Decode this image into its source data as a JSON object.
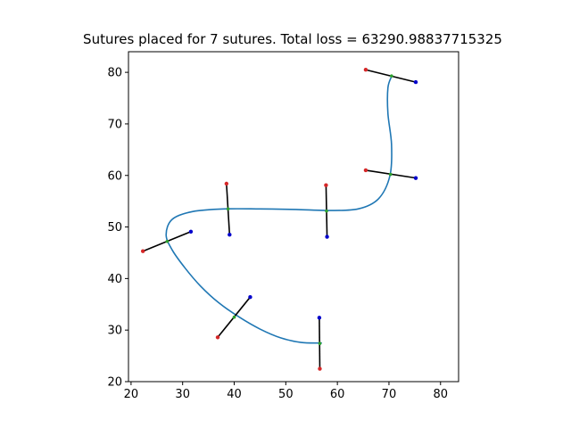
{
  "chart_data": {
    "type": "line",
    "title": "Sutures placed for 7 sutures. Total loss = 63290.98837715325",
    "xlim": [
      19.5,
      83.5
    ],
    "ylim": [
      20,
      84
    ],
    "xticks": [
      20,
      30,
      40,
      50,
      60,
      70,
      80
    ],
    "yticks": [
      20,
      30,
      40,
      50,
      60,
      70,
      80
    ],
    "tick_labels_x": [
      "20",
      "30",
      "40",
      "50",
      "60",
      "70",
      "80"
    ],
    "tick_labels_y": [
      "20",
      "30",
      "40",
      "50",
      "60",
      "70",
      "80"
    ],
    "grid": false,
    "curve": {
      "color": "#1f77b4",
      "points": [
        [
          57,
          27.5
        ],
        [
          53,
          27.6
        ],
        [
          49,
          28.5
        ],
        [
          45,
          30.2
        ],
        [
          41,
          32.5
        ],
        [
          37,
          35.3
        ],
        [
          33.5,
          38.5
        ],
        [
          30.5,
          42
        ],
        [
          28,
          45.5
        ],
        [
          26.8,
          48.5
        ],
        [
          28,
          51.5
        ],
        [
          32,
          53
        ],
        [
          38,
          53.5
        ],
        [
          45,
          53.5
        ],
        [
          52,
          53.4
        ],
        [
          58,
          53.2
        ],
        [
          64,
          53.5
        ],
        [
          68,
          55.5
        ],
        [
          70.2,
          60
        ],
        [
          70.5,
          66
        ],
        [
          69.8,
          72
        ],
        [
          69.8,
          77
        ],
        [
          70.5,
          79.2
        ]
      ]
    },
    "sutures": [
      {
        "start": [
          65.5,
          80.5
        ],
        "center": [
          70.5,
          79.3
        ],
        "end": [
          75.2,
          78.1
        ]
      },
      {
        "start": [
          65.5,
          61.0
        ],
        "center": [
          70.3,
          60.2
        ],
        "end": [
          75.2,
          59.5
        ]
      },
      {
        "start": [
          57.8,
          58.1
        ],
        "center": [
          57.9,
          53.1
        ],
        "end": [
          58.0,
          48.1
        ]
      },
      {
        "start": [
          38.5,
          58.4
        ],
        "center": [
          38.8,
          53.5
        ],
        "end": [
          39.1,
          48.5
        ]
      },
      {
        "start": [
          22.3,
          45.3
        ],
        "center": [
          27.0,
          47.2
        ],
        "end": [
          31.6,
          49.1
        ]
      },
      {
        "start": [
          36.8,
          28.6
        ],
        "center": [
          40.0,
          32.5
        ],
        "end": [
          43.1,
          36.4
        ]
      },
      {
        "start": [
          56.6,
          22.5
        ],
        "center": [
          56.6,
          27.4
        ],
        "end": [
          56.5,
          32.4
        ]
      }
    ],
    "colors": {
      "line": "#1f77b4",
      "suture": "#000000",
      "start_marker": "#d62728",
      "center_marker": "#2ca02c",
      "end_marker": "#0000cc"
    }
  }
}
